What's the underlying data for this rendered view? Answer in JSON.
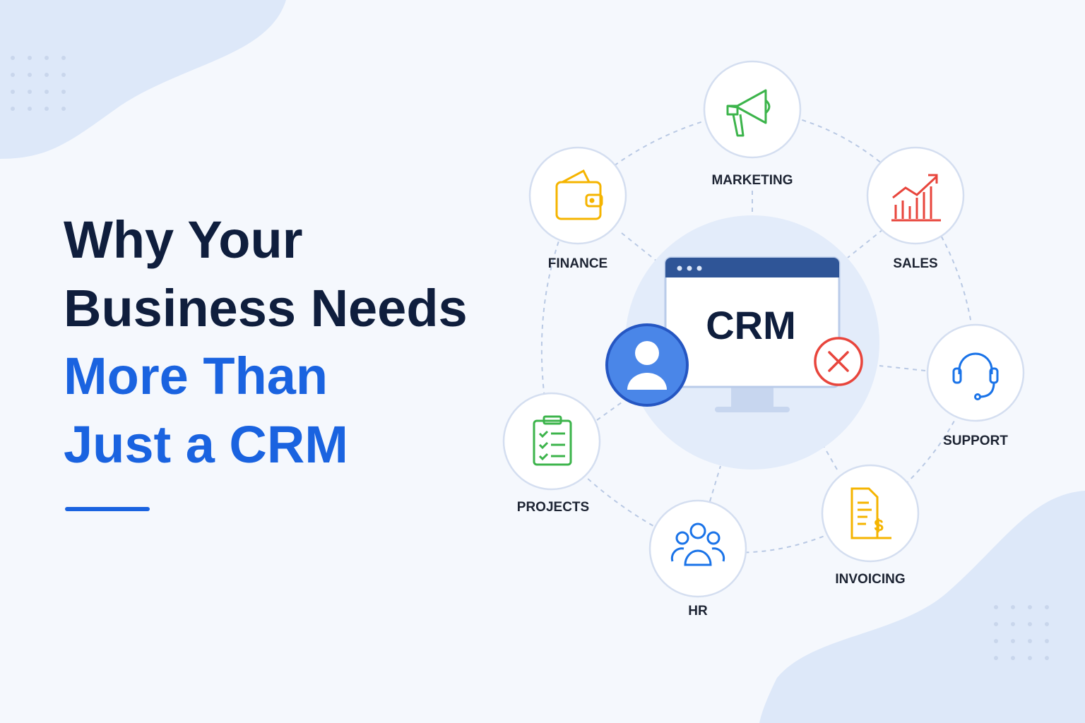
{
  "headline": {
    "dark": [
      "Why Your",
      "Business Needs"
    ],
    "accent": [
      "More Than",
      "Just a CRM"
    ]
  },
  "center": {
    "label": "CRM"
  },
  "nodes": [
    {
      "label": "MARKETING"
    },
    {
      "label": "SALES"
    },
    {
      "label": "SUPPORT"
    },
    {
      "label": "INVOICING"
    },
    {
      "label": "HR"
    },
    {
      "label": "PROJECTS"
    },
    {
      "label": "FINANCE"
    }
  ]
}
